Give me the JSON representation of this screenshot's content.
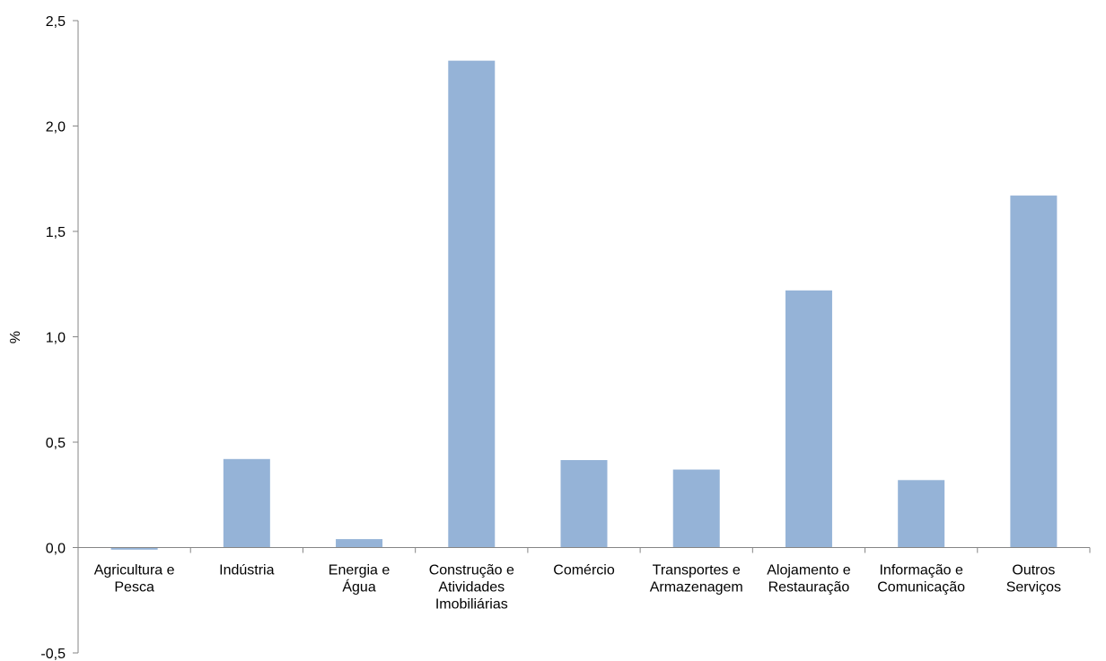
{
  "chart_data": {
    "type": "bar",
    "categories": [
      [
        "Agricultura e",
        "Pesca"
      ],
      [
        "Indústria"
      ],
      [
        "Energia e",
        "Água"
      ],
      [
        "Construção e",
        "Atividades",
        "Imobiliárias"
      ],
      [
        "Comércio"
      ],
      [
        "Transportes e",
        "Armazenagem"
      ],
      [
        "Alojamento e",
        "Restauração"
      ],
      [
        "Informação e",
        "Comunicação"
      ],
      [
        "Outros",
        "Serviços"
      ]
    ],
    "values": [
      -0.01,
      0.42,
      0.04,
      2.31,
      0.415,
      0.37,
      1.22,
      0.32,
      1.67
    ],
    "ylabel": "%",
    "ylim": [
      -0.5,
      2.5
    ],
    "yticks": [
      "-0,5",
      "0,0",
      "0,5",
      "1,0",
      "1,5",
      "2,0",
      "2,5"
    ],
    "ytick_values": [
      -0.5,
      0,
      0.5,
      1.0,
      1.5,
      2.0,
      2.5
    ],
    "grid": false,
    "legend": "none",
    "bar_color": "#95b3d7",
    "axis_color": "#868686"
  }
}
